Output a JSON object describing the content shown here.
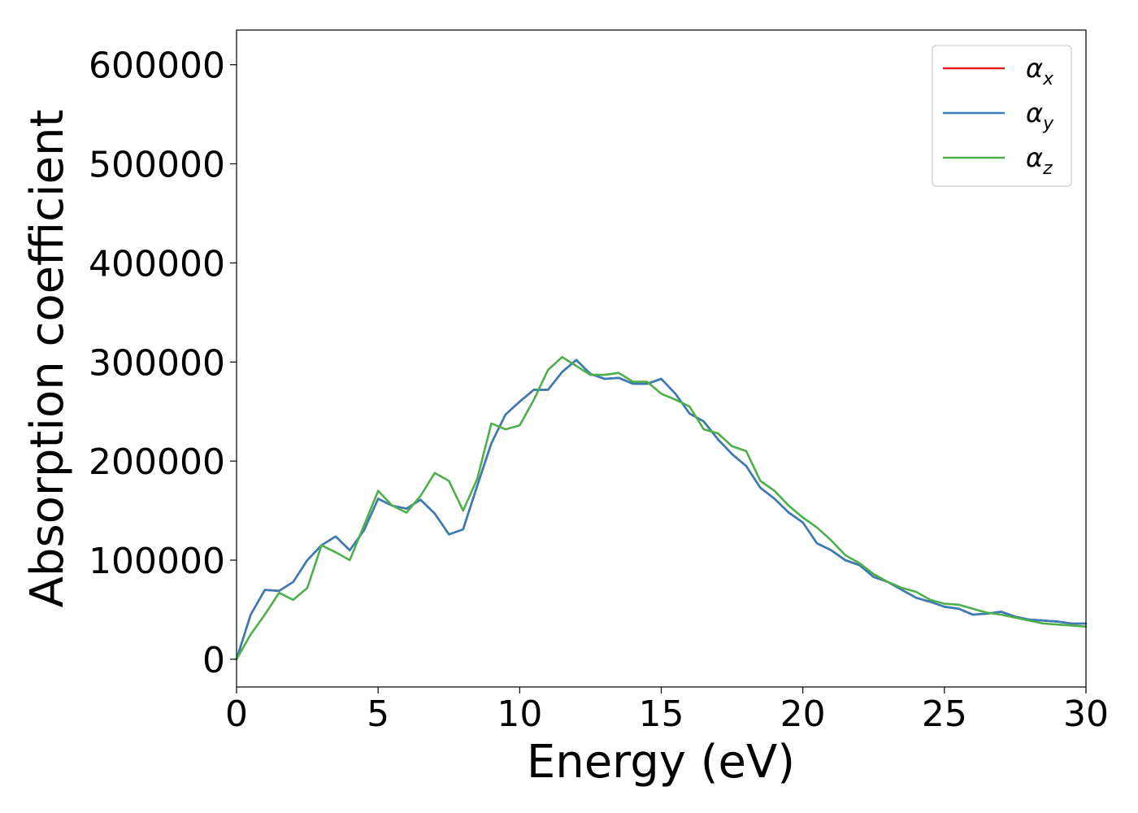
{
  "chart_data": {
    "type": "line",
    "title": "",
    "xlabel": "Energy (eV)",
    "ylabel": "Absorption coefficient",
    "xlim": [
      0,
      30
    ],
    "ylim": [
      -28000,
      635000
    ],
    "x_ticks": [
      0,
      5,
      10,
      15,
      20,
      25,
      30
    ],
    "x_tick_labels": [
      "0",
      "5",
      "10",
      "15",
      "20",
      "25",
      "30"
    ],
    "y_ticks": [
      0,
      100000,
      200000,
      300000,
      400000,
      500000,
      600000
    ],
    "y_tick_labels": [
      "0",
      "100000",
      "200000",
      "300000",
      "400000",
      "500000",
      "600000"
    ],
    "grid": false,
    "legend_position": "top-right",
    "series": [
      {
        "name": "α",
        "subscript": "x",
        "color": "#e41a1c",
        "x": [
          0,
          0.5,
          1.0,
          1.5,
          2.0,
          2.5,
          3.0,
          3.5,
          4.0,
          4.5,
          5.0,
          5.5,
          6.0,
          6.5,
          7.0,
          7.5,
          8.0,
          8.5,
          9.0,
          9.5,
          10.0,
          10.5,
          11.0,
          11.5,
          12.0,
          12.5,
          13.0,
          13.5,
          14.0,
          14.5,
          15.0,
          15.5,
          16.0,
          16.5,
          17.0,
          17.5,
          18.0,
          18.5,
          19.0,
          19.5,
          20.0,
          20.5,
          21.0,
          21.5,
          22.0,
          22.5,
          23.0,
          23.5,
          24.0,
          24.5,
          25.0,
          25.5,
          26.0,
          26.5,
          27.0,
          27.5,
          28.0,
          28.5,
          29.0,
          29.5,
          30.0
        ],
        "values": [
          0,
          45000,
          70000,
          69000,
          78000,
          100000,
          115000,
          124000,
          110000,
          130000,
          162000,
          155000,
          152000,
          161000,
          147000,
          126000,
          131000,
          175000,
          218000,
          247000,
          260000,
          272000,
          272000,
          290000,
          302000,
          288000,
          283000,
          284000,
          278000,
          278000,
          283000,
          268000,
          248000,
          240000,
          222000,
          207000,
          195000,
          173000,
          162000,
          148000,
          138000,
          117000,
          110000,
          100000,
          95000,
          83000,
          78000,
          70000,
          62000,
          58000,
          53000,
          51000,
          45000,
          46000,
          48000,
          43000,
          40000,
          39000,
          38000,
          36000,
          36000
        ]
      },
      {
        "name": "α",
        "subscript": "y",
        "color": "#377eb8",
        "x": [
          0,
          0.5,
          1.0,
          1.5,
          2.0,
          2.5,
          3.0,
          3.5,
          4.0,
          4.5,
          5.0,
          5.5,
          6.0,
          6.5,
          7.0,
          7.5,
          8.0,
          8.5,
          9.0,
          9.5,
          10.0,
          10.5,
          11.0,
          11.5,
          12.0,
          12.5,
          13.0,
          13.5,
          14.0,
          14.5,
          15.0,
          15.5,
          16.0,
          16.5,
          17.0,
          17.5,
          18.0,
          18.5,
          19.0,
          19.5,
          20.0,
          20.5,
          21.0,
          21.5,
          22.0,
          22.5,
          23.0,
          23.5,
          24.0,
          24.5,
          25.0,
          25.5,
          26.0,
          26.5,
          27.0,
          27.5,
          28.0,
          28.5,
          29.0,
          29.5,
          30.0
        ],
        "values": [
          0,
          45000,
          70000,
          69000,
          78000,
          100000,
          115000,
          124000,
          110000,
          130000,
          162000,
          155000,
          152000,
          161000,
          147000,
          126000,
          131000,
          175000,
          218000,
          247000,
          260000,
          272000,
          272000,
          290000,
          302000,
          288000,
          283000,
          284000,
          278000,
          278000,
          283000,
          268000,
          248000,
          240000,
          222000,
          207000,
          195000,
          173000,
          162000,
          148000,
          138000,
          117000,
          110000,
          100000,
          95000,
          83000,
          78000,
          70000,
          62000,
          58000,
          53000,
          51000,
          45000,
          46000,
          48000,
          43000,
          40000,
          39000,
          38000,
          36000,
          36000
        ]
      },
      {
        "name": "α",
        "subscript": "z",
        "color": "#4daf4a",
        "x": [
          0,
          0.5,
          1.0,
          1.5,
          2.0,
          2.5,
          3.0,
          3.5,
          4.0,
          4.5,
          5.0,
          5.5,
          6.0,
          6.5,
          7.0,
          7.5,
          8.0,
          8.5,
          9.0,
          9.5,
          10.0,
          10.5,
          11.0,
          11.5,
          12.0,
          12.5,
          13.0,
          13.5,
          14.0,
          14.5,
          15.0,
          15.5,
          16.0,
          16.5,
          17.0,
          17.5,
          18.0,
          18.5,
          19.0,
          19.5,
          20.0,
          20.5,
          21.0,
          21.5,
          22.0,
          22.5,
          23.0,
          23.5,
          24.0,
          24.5,
          25.0,
          25.5,
          26.0,
          26.5,
          27.0,
          27.5,
          28.0,
          28.5,
          29.0,
          29.5,
          30.0
        ],
        "values": [
          0,
          25000,
          45000,
          67000,
          60000,
          72000,
          115000,
          108000,
          100000,
          135000,
          170000,
          155000,
          148000,
          165000,
          188000,
          180000,
          150000,
          182000,
          238000,
          232000,
          236000,
          262000,
          292000,
          305000,
          296000,
          287000,
          287000,
          289000,
          280000,
          280000,
          268000,
          262000,
          255000,
          232000,
          228000,
          215000,
          210000,
          180000,
          170000,
          155000,
          143000,
          133000,
          120000,
          105000,
          97000,
          86000,
          78000,
          72000,
          68000,
          60000,
          56000,
          55000,
          51000,
          47000,
          45000,
          42000,
          39000,
          36000,
          35000,
          34000,
          33000
        ]
      }
    ]
  }
}
